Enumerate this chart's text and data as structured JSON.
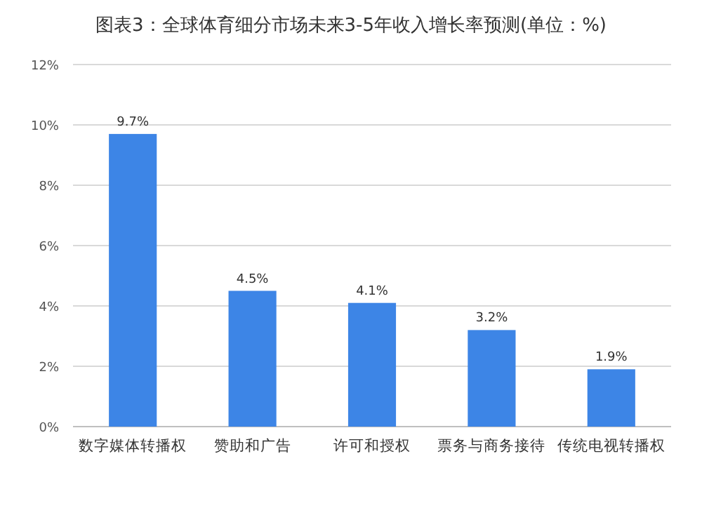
{
  "chart_data": {
    "type": "bar",
    "title": "图表3：全球体育细分市场未来3-5年收入增长率预测(单位：%)",
    "categories": [
      "数字媒体转播权",
      "赞助和广告",
      "许可和授权",
      "票务与商务接待",
      "传统电视转播权"
    ],
    "values": [
      9.7,
      4.5,
      4.1,
      3.2,
      1.9
    ],
    "color": "#3d85e6",
    "value_labels": [
      "9.7%",
      "4.5%",
      "4.1%",
      "3.2%",
      "1.9%"
    ],
    "ylim": [
      0,
      12
    ],
    "yticks": [
      {
        "value": 0,
        "label": "0%"
      },
      {
        "value": 2,
        "label": "2%"
      },
      {
        "value": 4,
        "label": "4%"
      },
      {
        "value": 6,
        "label": "6%"
      },
      {
        "value": 8,
        "label": "8%"
      },
      {
        "value": 10,
        "label": "10%"
      },
      {
        "value": 12,
        "label": "12%"
      }
    ],
    "grid": "y"
  }
}
